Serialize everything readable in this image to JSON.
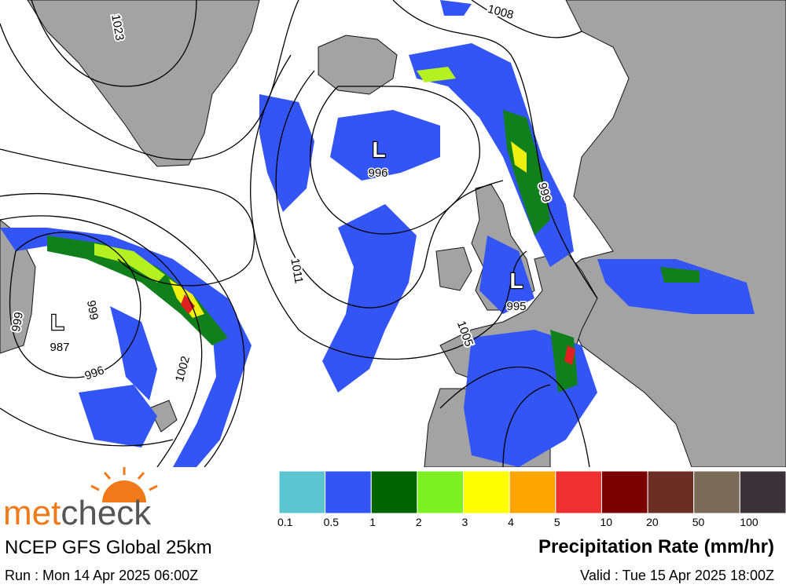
{
  "map": {
    "lows": [
      {
        "symbol": "L",
        "pressure": "996"
      },
      {
        "symbol": "L",
        "pressure": "995"
      },
      {
        "symbol": "L",
        "pressure": "987"
      }
    ],
    "isobar_labels": [
      "1023",
      "1008",
      "999",
      "1011",
      "1005",
      "996",
      "999",
      "1002",
      "999"
    ]
  },
  "legend": {
    "title": "Precipitation Rate (mm/hr)",
    "levels": [
      {
        "label": "0.1",
        "color": "#5bc6d2"
      },
      {
        "label": "0.5",
        "color": "#3355f5"
      },
      {
        "label": "1",
        "color": "#006400"
      },
      {
        "label": "2",
        "color": "#7cf020"
      },
      {
        "label": "3",
        "color": "#ffff00"
      },
      {
        "label": "4",
        "color": "#ffa500"
      },
      {
        "label": "5",
        "color": "#f03030"
      },
      {
        "label": "10",
        "color": "#7a0000"
      },
      {
        "label": "20",
        "color": "#6a2e22"
      },
      {
        "label": "50",
        "color": "#7a6a58"
      },
      {
        "label": "100",
        "color": "#3a3236"
      }
    ]
  },
  "footer": {
    "brand_prefix": "met",
    "brand_suffix": "check",
    "model": "NCEP GFS Global 25km",
    "run": "Run : Mon 14 Apr 2025 06:00Z",
    "valid": "Valid : Tue 15 Apr 2025 18:00Z"
  }
}
